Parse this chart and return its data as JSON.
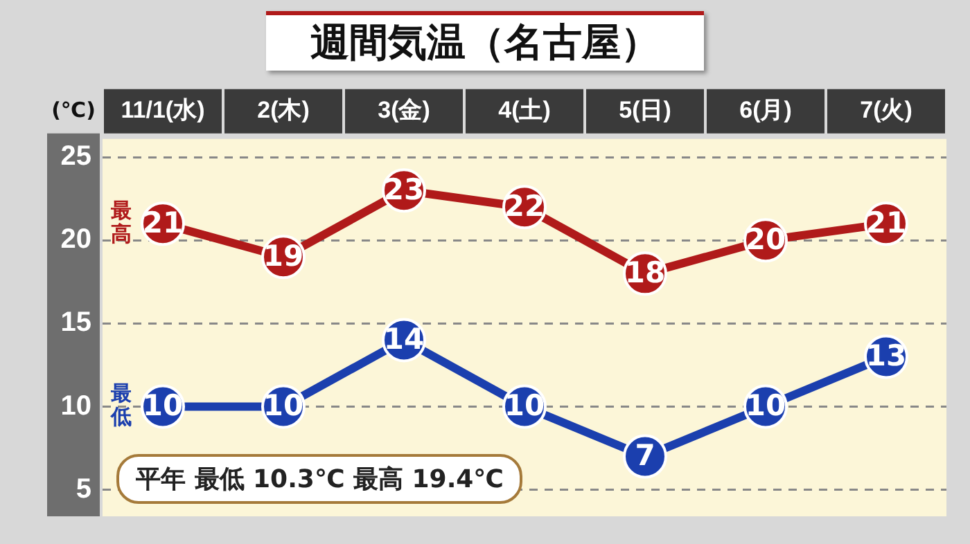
{
  "chart_data": {
    "type": "line",
    "title": "週間気温（名古屋）",
    "ylabel": "(℃)",
    "categories": [
      "11/1(水)",
      "2(木)",
      "3(金)",
      "4(土)",
      "5(日)",
      "6(月)",
      "7(火)"
    ],
    "series": [
      {
        "name": "最高",
        "color": "#b01a1a",
        "values": [
          21,
          19,
          23,
          22,
          18,
          20,
          21
        ]
      },
      {
        "name": "最低",
        "color": "#1b3fae",
        "values": [
          10,
          10,
          14,
          10,
          7,
          10,
          13
        ]
      }
    ],
    "ylim": [
      3.4,
      26.1
    ],
    "yticks": [
      5,
      10,
      15,
      20,
      25
    ],
    "grid": "y",
    "line_style": "solid",
    "marker": "circle",
    "data_labels": true,
    "annotations": [
      "平年 最低 10.3℃ 最高 19.4℃"
    ]
  }
}
